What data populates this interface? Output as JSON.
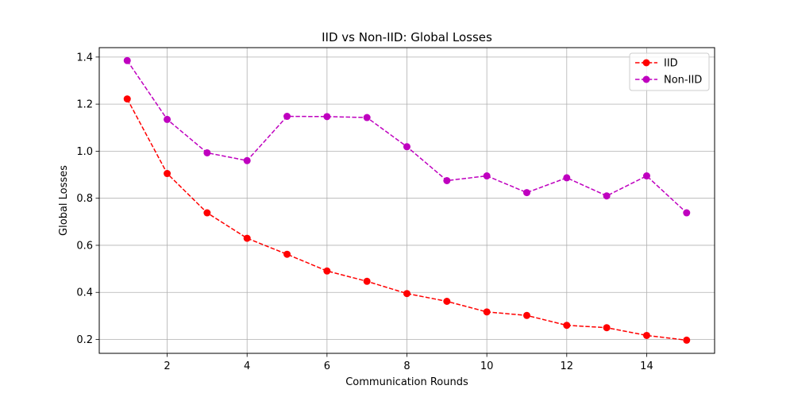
{
  "chart_data": {
    "type": "line",
    "title": "IID vs Non-IID: Global Losses",
    "xlabel": "Communication Rounds",
    "ylabel": "Global Losses",
    "x": [
      1,
      2,
      3,
      4,
      5,
      6,
      7,
      8,
      9,
      10,
      11,
      12,
      13,
      14,
      15
    ],
    "xlim": [
      0.3,
      15.7
    ],
    "ylim": [
      0.141,
      1.44
    ],
    "xticks": [
      2,
      4,
      6,
      8,
      10,
      12,
      14
    ],
    "yticks": [
      0.2,
      0.4,
      0.6,
      0.8,
      1.0,
      1.2,
      1.4
    ],
    "xtick_labels": [
      "2",
      "4",
      "6",
      "8",
      "10",
      "12",
      "14"
    ],
    "ytick_labels": [
      "0.2",
      "0.4",
      "0.6",
      "0.8",
      "1.0",
      "1.2",
      "1.4"
    ],
    "grid": true,
    "legend_position": "top-right",
    "series": [
      {
        "name": "IID",
        "color": "#ff0000",
        "line_style": "dashed",
        "marker": "circle",
        "values": [
          1.222,
          0.905,
          0.738,
          0.63,
          0.562,
          0.491,
          0.447,
          0.395,
          0.362,
          0.317,
          0.302,
          0.26,
          0.25,
          0.217,
          0.197
        ]
      },
      {
        "name": "Non-IID",
        "color": "#bf00bf",
        "line_style": "dashed",
        "marker": "circle",
        "values": [
          1.385,
          1.135,
          0.993,
          0.96,
          1.148,
          1.147,
          1.143,
          1.019,
          0.875,
          0.895,
          0.824,
          0.887,
          0.81,
          0.895,
          0.738
        ]
      }
    ]
  }
}
